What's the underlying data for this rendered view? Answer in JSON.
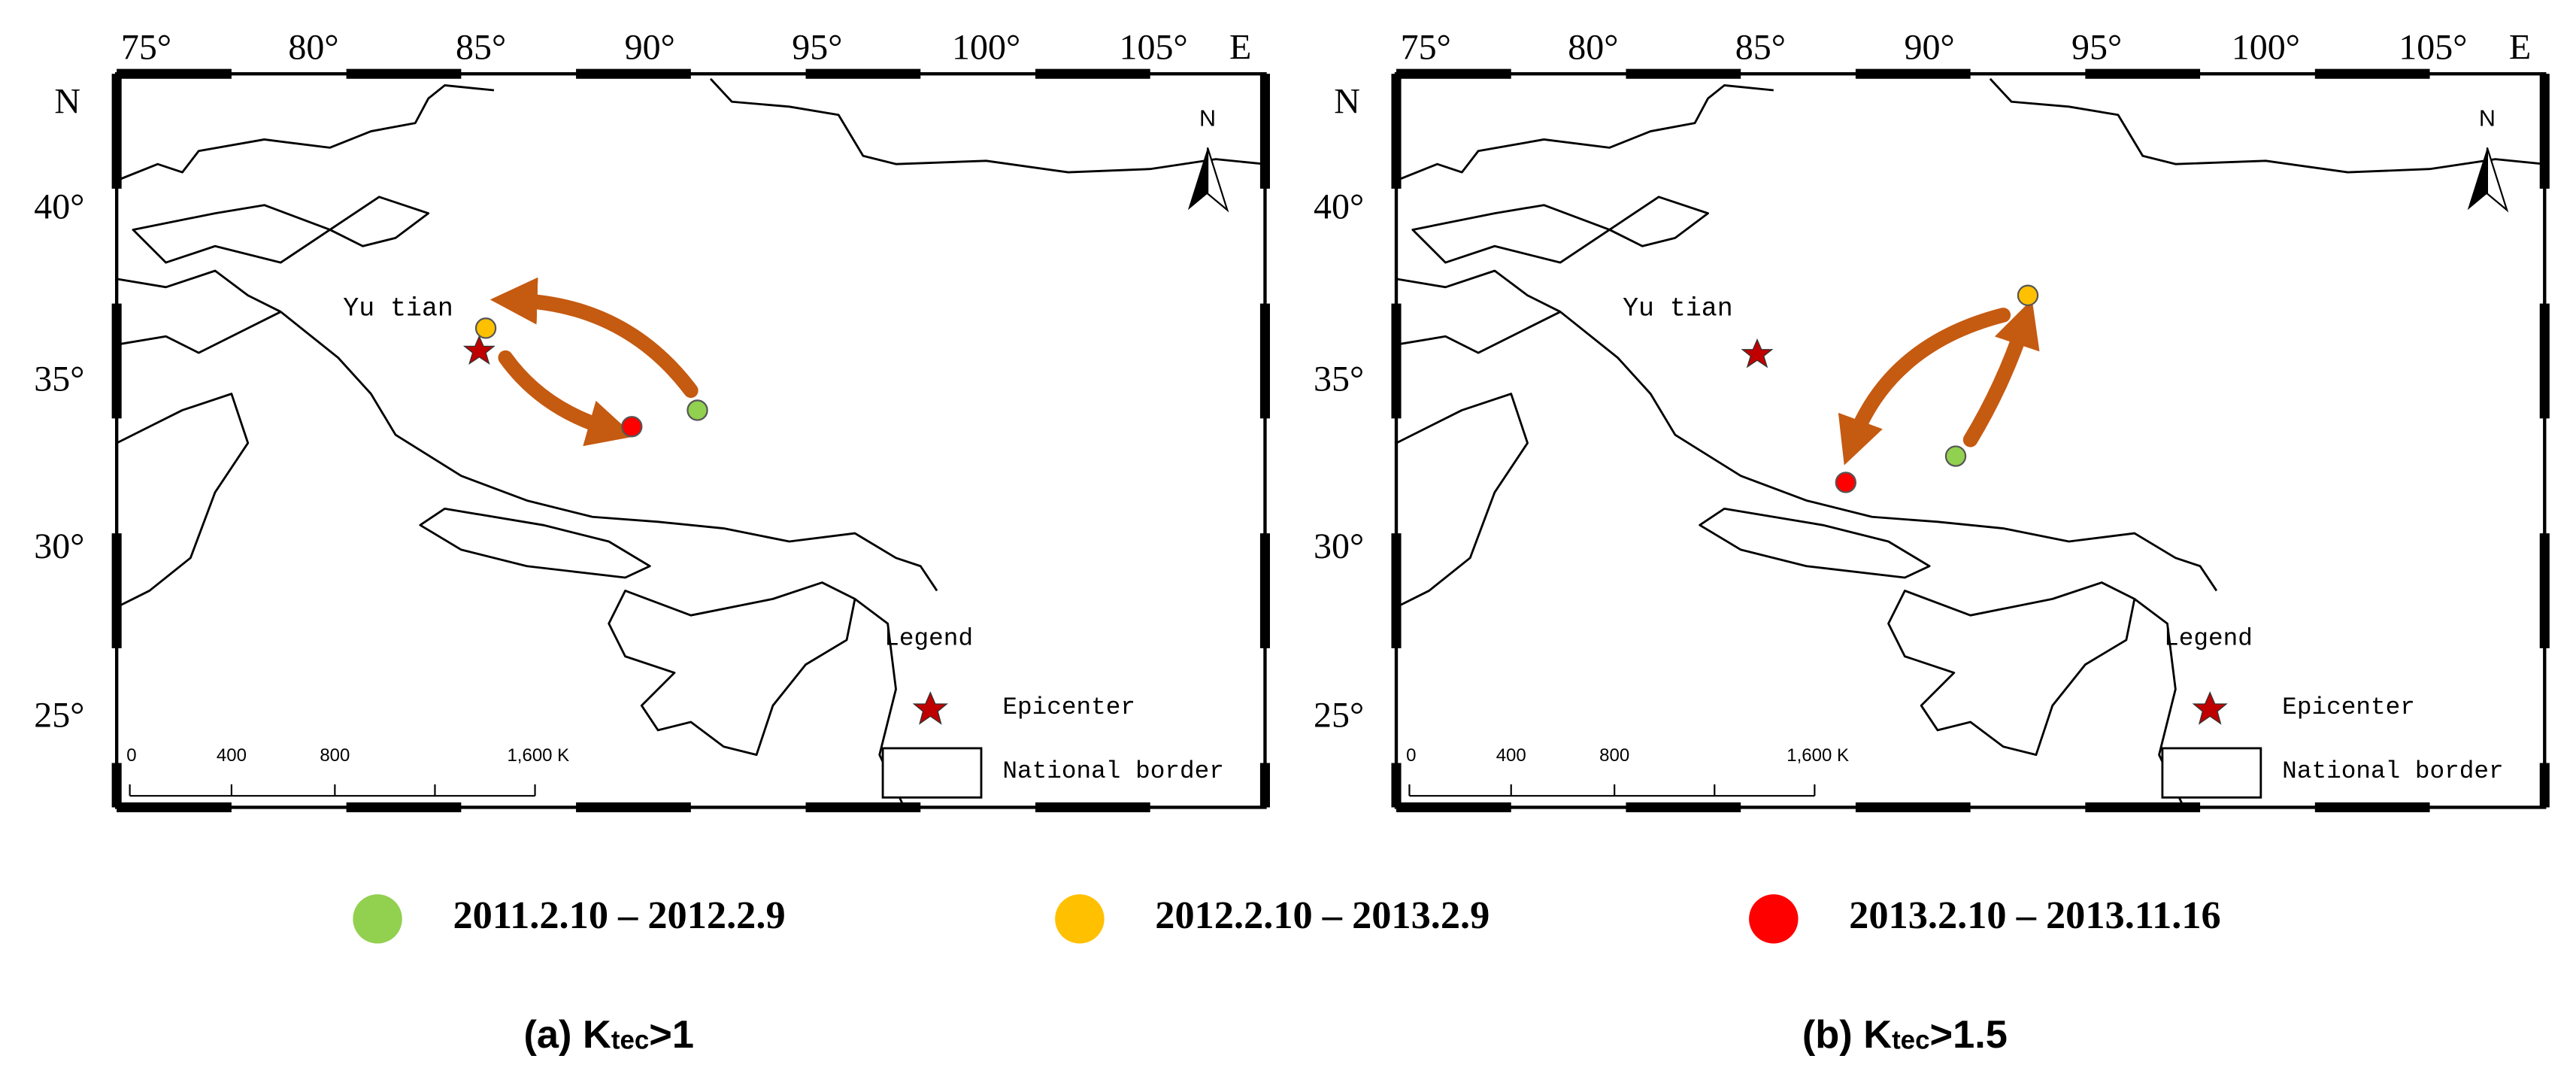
{
  "panels": [
    {
      "caption": {
        "prefix": "(a) K",
        "sub": "tec",
        "suffix": ">1"
      }
    },
    {
      "caption": {
        "prefix": "(b) K",
        "sub": "tec",
        "suffix": ">1.5"
      }
    }
  ],
  "lon_labels": [
    "75°",
    "80°",
    "85°",
    "90°",
    "95°",
    "100°",
    "105°"
  ],
  "east": "E",
  "north": "N",
  "lat_labels": [
    "40°",
    "35°",
    "30°",
    "25°"
  ],
  "place": "Yu tian",
  "legend_title": "Legend",
  "legend_items": [
    "Epicenter",
    "National border"
  ],
  "scale_labels": [
    "0",
    "400",
    "800",
    "1,600 K"
  ],
  "periods": [
    {
      "label": "2011.2.10 – 2012.2.9",
      "color": "#92d050"
    },
    {
      "label": "2012.2.10 – 2013.2.9",
      "color": "#ffc000"
    },
    {
      "label": "2013.2.10 – 2013.11.16",
      "color": "#ff0000"
    }
  ]
}
